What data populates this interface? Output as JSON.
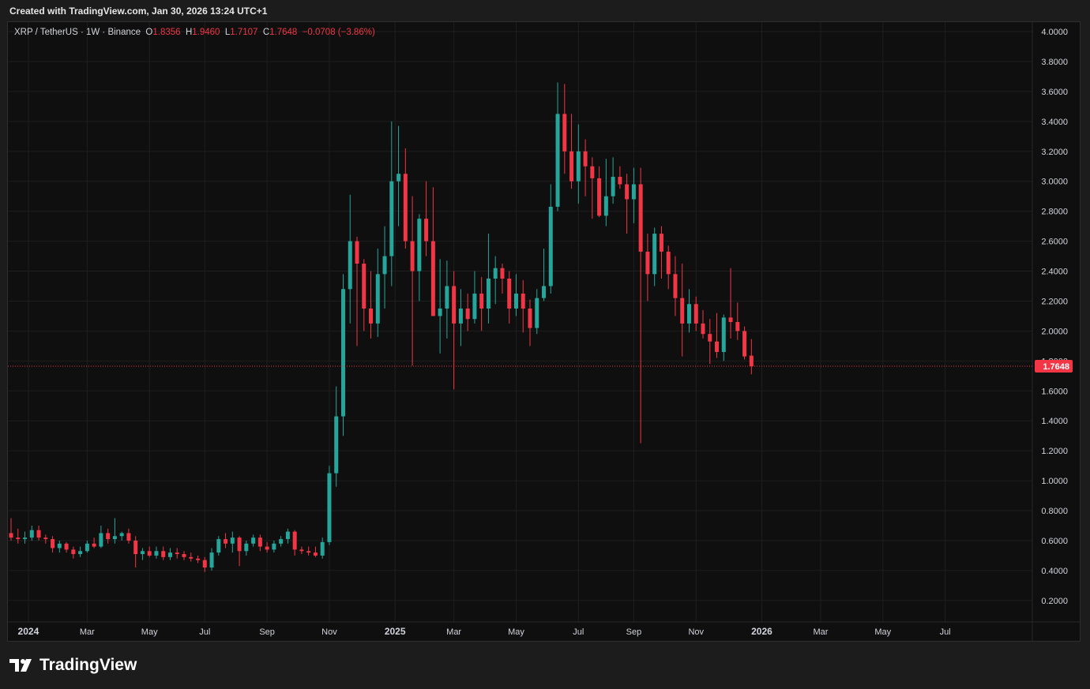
{
  "header": {
    "created_with": "Created with TradingView.com, Jan 30, 2026 13:24 UTC+1"
  },
  "legend": {
    "symbol": "XRP / TetherUS · 1W · Binance",
    "open_label": "O",
    "open": "1.8356",
    "high_label": "H",
    "high": "1.9460",
    "low_label": "L",
    "low": "1.7107",
    "close_label": "C",
    "close": "1.7648",
    "change": "−0.0708 (−3.86%)"
  },
  "brand": {
    "name": "TradingView",
    "icon": "tradingview-logo-icon"
  },
  "colors": {
    "up": "#26a69a",
    "down": "#f23645",
    "background": "#0f0f0f",
    "grid": "#1f1f1f",
    "axis_text": "#d1d4dc",
    "price_line": "#f23645"
  },
  "chart_data": {
    "type": "candlestick",
    "timeframe": "1W",
    "ylim": [
      0.1,
      4.05
    ],
    "grid": true,
    "current_price": {
      "value": 1.7648,
      "label": "1.7648"
    },
    "y_ticks": [
      "4.0000",
      "3.8000",
      "3.6000",
      "3.4000",
      "3.2000",
      "3.0000",
      "2.8000",
      "2.6000",
      "2.4000",
      "2.2000",
      "2.0000",
      "1.8000",
      "1.6000",
      "1.4000",
      "1.2000",
      "1.0000",
      "0.8000",
      "0.6000",
      "0.4000",
      "0.2000"
    ],
    "x_ticks": [
      "2024",
      "Mar",
      "May",
      "Jul",
      "Sep",
      "Nov",
      "2025",
      "Mar",
      "May",
      "Jul",
      "Sep",
      "Nov",
      "2026",
      "Mar",
      "May",
      "Jul"
    ],
    "x_tick_bold": [
      true,
      false,
      false,
      false,
      false,
      false,
      true,
      false,
      false,
      false,
      false,
      false,
      true,
      false,
      false,
      false
    ],
    "x_tick_week_index": [
      2.5,
      11,
      20,
      28,
      37,
      46,
      55.5,
      64,
      73,
      82,
      90,
      99,
      108.5,
      117,
      126,
      135
    ],
    "candles": [
      [
        0.65,
        0.75,
        0.6,
        0.62
      ],
      [
        0.62,
        0.68,
        0.58,
        0.61
      ],
      [
        0.61,
        0.66,
        0.58,
        0.62
      ],
      [
        0.62,
        0.7,
        0.6,
        0.67
      ],
      [
        0.67,
        0.7,
        0.6,
        0.62
      ],
      [
        0.62,
        0.64,
        0.58,
        0.61
      ],
      [
        0.61,
        0.63,
        0.52,
        0.55
      ],
      [
        0.55,
        0.6,
        0.52,
        0.58
      ],
      [
        0.58,
        0.59,
        0.52,
        0.54
      ],
      [
        0.54,
        0.56,
        0.48,
        0.51
      ],
      [
        0.51,
        0.56,
        0.49,
        0.53
      ],
      [
        0.53,
        0.6,
        0.52,
        0.58
      ],
      [
        0.58,
        0.62,
        0.55,
        0.56
      ],
      [
        0.56,
        0.7,
        0.55,
        0.65
      ],
      [
        0.65,
        0.68,
        0.58,
        0.61
      ],
      [
        0.61,
        0.75,
        0.58,
        0.63
      ],
      [
        0.63,
        0.66,
        0.6,
        0.65
      ],
      [
        0.65,
        0.68,
        0.58,
        0.6
      ],
      [
        0.6,
        0.63,
        0.42,
        0.51
      ],
      [
        0.51,
        0.55,
        0.47,
        0.53
      ],
      [
        0.53,
        0.56,
        0.49,
        0.5
      ],
      [
        0.5,
        0.56,
        0.48,
        0.53
      ],
      [
        0.53,
        0.56,
        0.47,
        0.49
      ],
      [
        0.49,
        0.55,
        0.47,
        0.52
      ],
      [
        0.52,
        0.55,
        0.48,
        0.51
      ],
      [
        0.51,
        0.53,
        0.47,
        0.49
      ],
      [
        0.49,
        0.52,
        0.46,
        0.48
      ],
      [
        0.48,
        0.5,
        0.45,
        0.47
      ],
      [
        0.47,
        0.49,
        0.39,
        0.42
      ],
      [
        0.42,
        0.55,
        0.4,
        0.52
      ],
      [
        0.52,
        0.63,
        0.5,
        0.61
      ],
      [
        0.61,
        0.65,
        0.55,
        0.58
      ],
      [
        0.58,
        0.66,
        0.52,
        0.62
      ],
      [
        0.62,
        0.63,
        0.43,
        0.53
      ],
      [
        0.53,
        0.6,
        0.5,
        0.58
      ],
      [
        0.58,
        0.64,
        0.56,
        0.62
      ],
      [
        0.62,
        0.64,
        0.53,
        0.56
      ],
      [
        0.56,
        0.59,
        0.52,
        0.54
      ],
      [
        0.54,
        0.6,
        0.52,
        0.58
      ],
      [
        0.58,
        0.63,
        0.56,
        0.61
      ],
      [
        0.61,
        0.68,
        0.58,
        0.66
      ],
      [
        0.66,
        0.67,
        0.5,
        0.54
      ],
      [
        0.54,
        0.56,
        0.51,
        0.53
      ],
      [
        0.53,
        0.56,
        0.5,
        0.52
      ],
      [
        0.52,
        0.56,
        0.49,
        0.5
      ],
      [
        0.5,
        0.62,
        0.48,
        0.59
      ],
      [
        0.59,
        1.1,
        0.57,
        1.05
      ],
      [
        1.05,
        1.63,
        0.96,
        1.43
      ],
      [
        1.43,
        2.38,
        1.3,
        2.28
      ],
      [
        2.28,
        2.91,
        2.05,
        2.6
      ],
      [
        2.6,
        2.63,
        1.9,
        2.45
      ],
      [
        2.45,
        2.48,
        2.0,
        2.15
      ],
      [
        2.15,
        2.4,
        1.95,
        2.05
      ],
      [
        2.05,
        2.55,
        1.96,
        2.38
      ],
      [
        2.38,
        2.7,
        2.15,
        2.5
      ],
      [
        2.5,
        3.4,
        2.3,
        3.0
      ],
      [
        3.0,
        3.37,
        2.7,
        3.05
      ],
      [
        3.05,
        3.22,
        2.55,
        2.6
      ],
      [
        2.6,
        2.9,
        1.77,
        2.4
      ],
      [
        2.4,
        2.78,
        2.2,
        2.75
      ],
      [
        2.75,
        3.0,
        2.5,
        2.6
      ],
      [
        2.6,
        2.96,
        2.1,
        2.1
      ],
      [
        2.1,
        2.48,
        1.85,
        2.15
      ],
      [
        2.15,
        2.47,
        1.95,
        2.3
      ],
      [
        2.3,
        2.4,
        1.61,
        2.05
      ],
      [
        2.05,
        2.28,
        1.9,
        2.15
      ],
      [
        2.15,
        2.25,
        2.0,
        2.08
      ],
      [
        2.08,
        2.4,
        2.05,
        2.25
      ],
      [
        2.25,
        2.36,
        2.0,
        2.15
      ],
      [
        2.15,
        2.65,
        2.05,
        2.35
      ],
      [
        2.35,
        2.5,
        2.18,
        2.42
      ],
      [
        2.42,
        2.45,
        2.25,
        2.35
      ],
      [
        2.35,
        2.4,
        2.05,
        2.15
      ],
      [
        2.15,
        2.38,
        2.1,
        2.25
      ],
      [
        2.25,
        2.34,
        1.99,
        2.15
      ],
      [
        2.15,
        2.21,
        1.9,
        2.02
      ],
      [
        2.02,
        2.28,
        1.98,
        2.22
      ],
      [
        2.22,
        2.55,
        2.2,
        2.3
      ],
      [
        2.3,
        2.98,
        2.25,
        2.83
      ],
      [
        2.83,
        3.66,
        2.8,
        3.45
      ],
      [
        3.45,
        3.65,
        3.05,
        3.2
      ],
      [
        3.2,
        3.45,
        2.95,
        3.0
      ],
      [
        3.0,
        3.38,
        2.85,
        3.2
      ],
      [
        3.2,
        3.28,
        2.9,
        3.1
      ],
      [
        3.1,
        3.16,
        2.75,
        3.02
      ],
      [
        3.02,
        3.1,
        2.76,
        2.77
      ],
      [
        2.77,
        3.15,
        2.7,
        2.9
      ],
      [
        2.9,
        3.16,
        2.85,
        3.03
      ],
      [
        3.03,
        3.1,
        2.95,
        2.98
      ],
      [
        2.98,
        3.05,
        2.65,
        2.88
      ],
      [
        2.88,
        3.09,
        2.72,
        2.98
      ],
      [
        2.98,
        3.09,
        1.25,
        2.53
      ],
      [
        2.53,
        2.65,
        2.2,
        2.38
      ],
      [
        2.38,
        2.69,
        2.3,
        2.65
      ],
      [
        2.65,
        2.7,
        2.35,
        2.53
      ],
      [
        2.53,
        2.57,
        2.28,
        2.38
      ],
      [
        2.38,
        2.5,
        2.1,
        2.22
      ],
      [
        2.22,
        2.45,
        1.83,
        2.05
      ],
      [
        2.05,
        2.28,
        1.99,
        2.18
      ],
      [
        2.18,
        2.23,
        2.0,
        2.05
      ],
      [
        2.05,
        2.14,
        1.95,
        1.98
      ],
      [
        1.98,
        2.08,
        1.78,
        1.93
      ],
      [
        1.93,
        2.12,
        1.82,
        1.86
      ],
      [
        1.86,
        2.11,
        1.8,
        2.09
      ],
      [
        2.09,
        2.42,
        1.95,
        2.06
      ],
      [
        2.06,
        2.19,
        1.94,
        2.0
      ],
      [
        2.0,
        2.03,
        1.81,
        1.83
      ],
      [
        1.8356,
        1.946,
        1.7107,
        1.7648
      ]
    ]
  }
}
